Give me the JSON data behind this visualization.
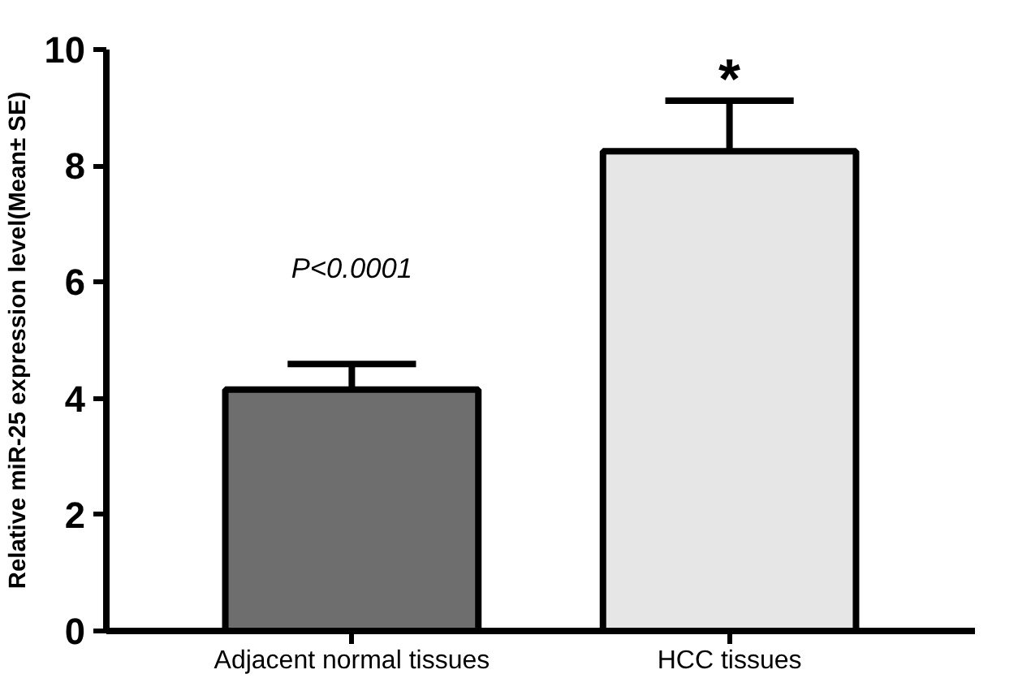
{
  "chart_data": {
    "type": "bar",
    "ylabel": "Relative miR-25 expression level(Mean± SE)",
    "categories": [
      "Adjacent normal tissues",
      "HCC tissues"
    ],
    "values": [
      4.15,
      8.25
    ],
    "errors": [
      0.44,
      0.87
    ],
    "colors": [
      "#6e6e6e",
      "#e6e6e6"
    ],
    "ylim": [
      0,
      10
    ],
    "yticks": [
      0,
      2,
      4,
      6,
      8,
      10
    ],
    "grid": false,
    "annotations": [
      "P<0.0001",
      "*"
    ]
  }
}
